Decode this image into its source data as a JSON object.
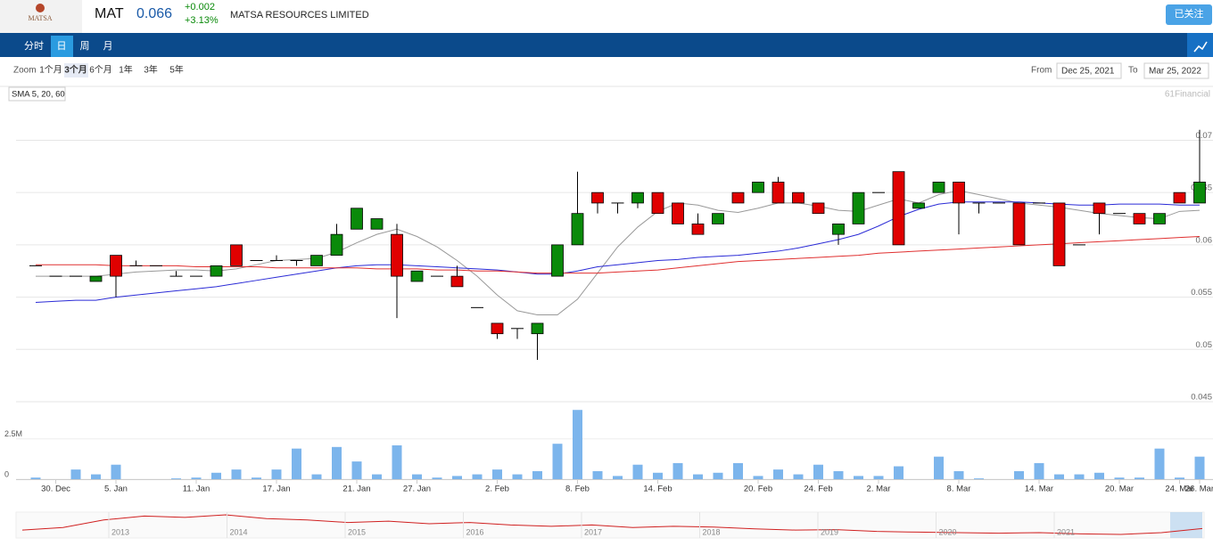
{
  "header": {
    "logo": "MATSA",
    "symbol": "MAT",
    "price": "0.066",
    "change": "+0.002",
    "change_pct": "+3.13%",
    "company": "MATSA RESOURCES LIMITED",
    "follow": "已关注"
  },
  "tabs": [
    "分时",
    "日",
    "周",
    "月"
  ],
  "toolbar": {
    "zoom": "Zoom",
    "ranges": [
      "1个月",
      "3个月",
      "6个月",
      "1年",
      "3年",
      "5年"
    ],
    "from_label": "From",
    "from": "Dec 25, 2021",
    "to_label": "To",
    "to": "Mar 25, 2022"
  },
  "chart_data": {
    "type": "candlestick",
    "legend": "SMA 5, 20, 60",
    "credit": "61Financial",
    "categories": [
      null,
      "30. Dec",
      null,
      null,
      "5. Jan",
      null,
      null,
      null,
      "11. Jan",
      null,
      null,
      null,
      "17. Jan",
      null,
      null,
      null,
      "21. Jan",
      null,
      null,
      "27. Jan",
      null,
      null,
      null,
      "2. Feb",
      null,
      null,
      null,
      "8. Feb",
      null,
      null,
      null,
      "14. Feb",
      null,
      null,
      null,
      null,
      "20. Feb",
      null,
      null,
      "24. Feb",
      null,
      null,
      "2. Mar",
      null,
      null,
      null,
      "8. Mar",
      null,
      null,
      null,
      "14. Mar",
      null,
      null,
      null,
      "20. Mar",
      null,
      null,
      "24. Mar",
      "26. Mar"
    ],
    "open": [
      0.058,
      0.057,
      0.057,
      0.0565,
      0.059,
      0.058,
      0.058,
      0.057,
      0.057,
      0.057,
      0.06,
      0.0585,
      0.0585,
      0.0585,
      0.058,
      0.059,
      0.0615,
      0.0615,
      0.061,
      0.0565,
      0.057,
      0.057,
      0.054,
      0.0525,
      0.052,
      0.0515,
      0.057,
      0.06,
      0.065,
      0.064,
      0.064,
      0.065,
      0.064,
      0.062,
      0.062,
      0.065,
      0.065,
      0.066,
      0.065,
      0.064,
      0.061,
      0.062,
      0.065,
      0.067,
      0.0635,
      0.065,
      0.066,
      0.064,
      0.064,
      0.064,
      0.064,
      0.064,
      0.06,
      0.064,
      0.063,
      0.063,
      0.062,
      0.065,
      0.064
    ],
    "high": [
      0.058,
      0.057,
      0.057,
      0.057,
      0.059,
      0.0585,
      0.058,
      0.0575,
      0.057,
      0.058,
      0.06,
      0.0585,
      0.059,
      0.0585,
      0.059,
      0.062,
      0.0635,
      0.0625,
      0.062,
      0.0575,
      0.057,
      0.058,
      0.054,
      0.0525,
      0.052,
      0.0525,
      0.06,
      0.067,
      0.065,
      0.064,
      0.065,
      0.065,
      0.064,
      0.063,
      0.063,
      0.065,
      0.066,
      0.0665,
      0.065,
      0.064,
      0.062,
      0.065,
      0.065,
      0.067,
      0.064,
      0.066,
      0.066,
      0.064,
      0.064,
      0.064,
      0.064,
      0.064,
      0.06,
      0.064,
      0.063,
      0.063,
      0.063,
      0.065,
      0.071
    ],
    "low": [
      0.058,
      0.057,
      0.057,
      0.0565,
      0.055,
      0.058,
      0.058,
      0.057,
      0.057,
      0.057,
      0.058,
      0.0585,
      0.0585,
      0.058,
      0.058,
      0.059,
      0.0615,
      0.0615,
      0.053,
      0.0565,
      0.057,
      0.056,
      0.054,
      0.051,
      0.051,
      0.049,
      0.057,
      0.06,
      0.063,
      0.063,
      0.0635,
      0.063,
      0.062,
      0.061,
      0.062,
      0.064,
      0.065,
      0.064,
      0.064,
      0.063,
      0.06,
      0.062,
      0.065,
      0.06,
      0.0635,
      0.065,
      0.061,
      0.063,
      0.064,
      0.06,
      0.064,
      0.058,
      0.06,
      0.061,
      0.063,
      0.062,
      0.062,
      0.064,
      0.064
    ],
    "close": [
      0.058,
      0.057,
      0.057,
      0.057,
      0.057,
      0.058,
      0.058,
      0.057,
      0.057,
      0.058,
      0.058,
      0.0585,
      0.0585,
      0.0585,
      0.059,
      0.061,
      0.0635,
      0.0625,
      0.057,
      0.0575,
      0.057,
      0.056,
      0.054,
      0.0515,
      0.052,
      0.0525,
      0.06,
      0.063,
      0.064,
      0.064,
      0.065,
      0.063,
      0.062,
      0.061,
      0.063,
      0.064,
      0.066,
      0.064,
      0.064,
      0.063,
      0.062,
      0.065,
      0.065,
      0.06,
      0.064,
      0.066,
      0.064,
      0.064,
      0.064,
      0.06,
      0.064,
      0.058,
      0.06,
      0.063,
      0.063,
      0.062,
      0.063,
      0.064,
      0.066
    ],
    "up_color": "#0a8a0a",
    "down_color": "#e00000",
    "lines": [
      {
        "color": "#999999",
        "values": [
          0.057,
          0.057,
          0.057,
          0.057,
          0.0572,
          0.0574,
          0.0575,
          0.0576,
          0.0576,
          0.0575,
          0.0577,
          0.0581,
          0.0585,
          0.0586,
          0.0587,
          0.0593,
          0.0602,
          0.061,
          0.0615,
          0.0608,
          0.0598,
          0.0585,
          0.057,
          0.0552,
          0.0537,
          0.0533,
          0.0533,
          0.0548,
          0.0573,
          0.0598,
          0.0617,
          0.0632,
          0.064,
          0.0638,
          0.0633,
          0.0631,
          0.0635,
          0.064,
          0.064,
          0.0637,
          0.0633,
          0.0632,
          0.0638,
          0.0644,
          0.064,
          0.0648,
          0.0652,
          0.0648,
          0.0644,
          0.064,
          0.0638,
          0.0636,
          0.0633,
          0.063,
          0.0628,
          0.0626,
          0.0625,
          0.0632,
          0.0633
        ]
      },
      {
        "color": "#2b2bd6",
        "values": [
          0.0545,
          0.0546,
          0.0547,
          0.0547,
          0.055,
          0.0552,
          0.0554,
          0.0556,
          0.0558,
          0.056,
          0.0563,
          0.0566,
          0.0569,
          0.0572,
          0.0575,
          0.0578,
          0.058,
          0.0581,
          0.0581,
          0.058,
          0.0579,
          0.0578,
          0.0577,
          0.0576,
          0.0574,
          0.0572,
          0.0572,
          0.0575,
          0.0579,
          0.0581,
          0.0583,
          0.0585,
          0.0586,
          0.0588,
          0.0589,
          0.059,
          0.0592,
          0.0594,
          0.0597,
          0.0601,
          0.0605,
          0.061,
          0.0618,
          0.0627,
          0.0634,
          0.0639,
          0.0641,
          0.0641,
          0.0641,
          0.0641,
          0.064,
          0.0639,
          0.0638,
          0.0638,
          0.0639,
          0.0639,
          0.0639,
          0.0638,
          0.0638
        ]
      },
      {
        "color": "#e03030",
        "values": [
          0.0581,
          0.0581,
          0.0581,
          0.0581,
          0.058,
          0.058,
          0.058,
          0.058,
          0.0579,
          0.0579,
          0.0579,
          0.0579,
          0.0578,
          0.0578,
          0.0578,
          0.0578,
          0.0578,
          0.0577,
          0.0577,
          0.0577,
          0.0576,
          0.0576,
          0.0575,
          0.0575,
          0.0574,
          0.0573,
          0.0573,
          0.0573,
          0.0573,
          0.0574,
          0.0575,
          0.0576,
          0.0578,
          0.058,
          0.0582,
          0.0584,
          0.0585,
          0.0586,
          0.0587,
          0.0588,
          0.0589,
          0.059,
          0.0592,
          0.0593,
          0.0594,
          0.0595,
          0.0596,
          0.0597,
          0.0598,
          0.0599,
          0.06,
          0.0601,
          0.0602,
          0.0603,
          0.0604,
          0.0605,
          0.0606,
          0.0607,
          0.0608
        ]
      }
    ],
    "ylim": [
      0.045,
      0.072
    ],
    "yticks": [
      0.045,
      0.05,
      0.055,
      0.06,
      0.065,
      0.07
    ],
    "volume": {
      "color": "#7cb5ec",
      "values": [
        100000,
        0,
        600000,
        300000,
        900000,
        0,
        0,
        50000,
        100000,
        400000,
        600000,
        100000,
        600000,
        1900000,
        300000,
        2000000,
        1100000,
        300000,
        2100000,
        300000,
        100000,
        200000,
        300000,
        600000,
        300000,
        500000,
        2200000,
        4300000,
        500000,
        200000,
        900000,
        400000,
        1000000,
        300000,
        400000,
        1000000,
        200000,
        600000,
        300000,
        900000,
        500000,
        200000,
        200000,
        800000,
        0,
        1400000,
        500000,
        50000,
        0,
        500000,
        1000000,
        300000,
        300000,
        400000,
        100000,
        100000,
        1900000,
        100000,
        1400000
      ],
      "ylim": [
        0,
        4700000
      ],
      "yticks": [
        0,
        {
          "value": 2500000,
          "label": "2.5M"
        }
      ]
    },
    "navigator": {
      "color": "#d02020",
      "years": [
        "2013",
        "2014",
        "2015",
        "2016",
        "2017",
        "2018",
        "2019",
        "2020",
        "2021"
      ],
      "values": [
        0.06,
        0.07,
        0.1,
        0.115,
        0.11,
        0.12,
        0.105,
        0.1,
        0.09,
        0.095,
        0.085,
        0.09,
        0.08,
        0.075,
        0.08,
        0.07,
        0.075,
        0.072,
        0.065,
        0.06,
        0.062,
        0.055,
        0.052,
        0.05,
        0.048,
        0.05,
        0.045,
        0.043,
        0.05,
        0.066
      ]
    }
  }
}
